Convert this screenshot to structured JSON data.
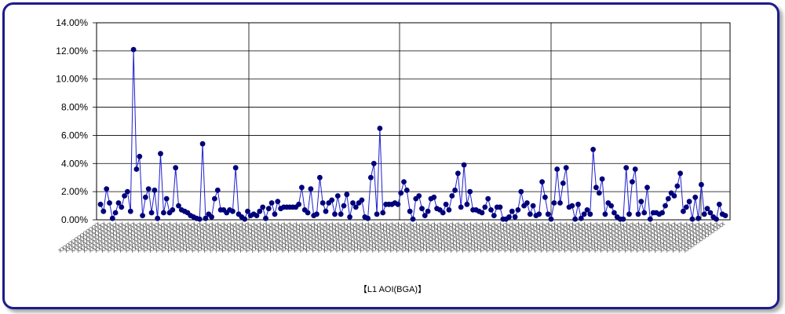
{
  "chart_data": {
    "type": "line",
    "title": "【L1 AOI(BGA)】",
    "xlabel": "",
    "ylabel": "",
    "ylim": [
      0,
      14
    ],
    "y_ticks": [
      "0.00%",
      "2.00%",
      "4.00%",
      "6.00%",
      "8.00%",
      "10.00%",
      "12.00%",
      "14.00%"
    ],
    "y_tick_values": [
      0,
      2,
      4,
      6,
      8,
      10,
      12,
      14
    ],
    "grid": true,
    "legend": "none",
    "series_color": "#1f1fcf",
    "marker_color": "#00007a",
    "category_label": "xxxxxxxxxxxxxx",
    "series": [
      {
        "values": [
          1.1,
          0.6,
          2.2,
          1.2,
          0.1,
          0.5,
          1.2,
          0.9,
          1.7,
          2.0,
          0.6,
          12.1,
          3.6,
          4.5,
          0.3,
          1.6,
          2.2,
          0.5,
          2.1,
          0.1,
          4.7,
          0.5,
          1.5,
          0.5,
          0.7,
          3.7,
          1.0,
          0.7,
          0.6,
          0.5,
          0.3,
          0.2,
          0.1,
          0.05,
          5.4,
          0.1,
          0.4,
          0.2,
          1.5,
          2.1,
          0.7,
          0.7,
          0.5,
          0.7,
          0.6,
          3.7,
          0.4,
          0.2,
          0.05,
          0.6,
          0.3,
          0.4,
          0.3,
          0.6,
          0.9,
          0.1,
          0.8,
          1.2,
          0.4,
          1.3,
          0.8,
          0.9,
          0.9,
          0.9,
          0.9,
          0.9,
          1.1,
          2.3,
          0.7,
          0.5,
          2.2,
          0.3,
          0.4,
          3.0,
          1.2,
          0.6,
          1.2,
          1.4,
          0.4,
          1.7,
          0.4,
          1.0,
          1.8,
          0.2,
          1.2,
          0.9,
          1.2,
          1.4,
          0.2,
          0.1,
          3.0,
          4.0,
          0.4,
          6.5,
          0.5,
          1.1,
          1.1,
          1.1,
          1.2,
          1.1,
          1.9,
          2.7,
          2.1,
          0.6,
          0.05,
          1.5,
          1.7,
          0.8,
          0.3,
          0.6,
          1.5,
          1.6,
          0.8,
          0.7,
          0.5,
          1.1,
          0.7,
          1.7,
          2.1,
          3.3,
          0.9,
          3.9,
          1.1,
          2.0,
          0.7,
          0.7,
          0.6,
          0.5,
          0.9,
          1.5,
          0.7,
          0.3,
          0.9,
          0.9,
          0.05,
          0.05,
          0.2,
          0.6,
          0.2,
          0.7,
          2.0,
          1.0,
          1.2,
          0.4,
          1.0,
          0.3,
          0.4,
          2.7,
          1.6,
          0.4,
          0.05,
          1.2,
          3.6,
          1.2,
          2.6,
          3.7,
          0.9,
          1.0,
          0.05,
          1.1,
          0.1,
          0.4,
          0.7,
          0.4,
          5.0,
          2.3,
          1.9,
          2.9,
          0.4,
          1.2,
          1.0,
          0.5,
          0.2,
          0.05,
          0.05,
          3.7,
          0.4,
          2.7,
          3.6,
          0.4,
          1.3,
          0.5,
          2.3,
          0.05,
          0.5,
          0.5,
          0.4,
          0.5,
          1.0,
          1.5,
          1.9,
          1.7,
          2.4,
          3.3,
          0.6,
          0.9,
          1.3,
          0.05,
          1.6,
          0.1,
          2.5,
          0.4,
          0.8,
          0.5,
          0.2,
          0.05,
          1.1,
          0.4,
          0.3
        ]
      }
    ]
  }
}
